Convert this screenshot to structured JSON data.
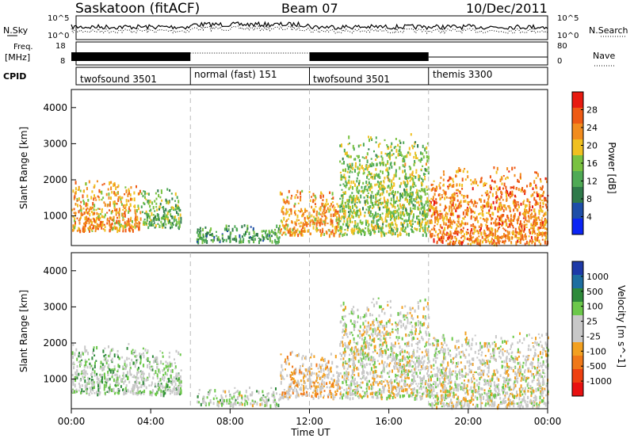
{
  "header": {
    "radar": "Saskatoon (fitACF)",
    "beam": "Beam 07",
    "date": "10/Dec/2011"
  },
  "side_labels": {
    "nsky": "N.Sky",
    "nsearch": "N.Search",
    "freq_line1": "Freq.",
    "freq_line2": "[MHz]",
    "nave": "Nave",
    "cpid": "CPID"
  },
  "left_ticks": {
    "nsky_top": "10^5",
    "nsky_bottom": "10^0",
    "freq_top": "18",
    "freq_bottom": "8"
  },
  "right_ticks": {
    "nsearch_top": "10^5",
    "nsearch_bottom": "10^0",
    "nave_top": "80",
    "nave_bottom": "0"
  },
  "cpid_labels": [
    "twofsound 3501",
    "normal (fast) 151",
    "twofsound 3501",
    "themis 3300"
  ],
  "x_axis": {
    "label": "Time UT",
    "ticks": [
      "00:00",
      "04:00",
      "08:00",
      "12:00",
      "16:00",
      "20:00",
      "00:00"
    ]
  },
  "power_panel": {
    "ylabel": "Slant Range [km]",
    "yticks": [
      "1000",
      "2000",
      "3000",
      "4000"
    ],
    "colorbar_label": "Power [dB]",
    "colorbar_ticks": [
      "4",
      "8",
      "12",
      "16",
      "20",
      "24",
      "28"
    ]
  },
  "velocity_panel": {
    "ylabel": "Slant Range [km]",
    "yticks": [
      "1000",
      "2000",
      "3000",
      "4000"
    ],
    "colorbar_label": "Velocity [m s^-1]",
    "colorbar_ticks": [
      "1000",
      "500",
      "100",
      "25",
      "-25",
      "-100",
      "-500",
      "-1000"
    ]
  },
  "colors": {
    "power_scale": [
      "#0b24f5",
      "#1e4ea8",
      "#2f7a4a",
      "#4faa55",
      "#79c241",
      "#f0c020",
      "#f28c1e",
      "#ee5a14",
      "#e81a10"
    ],
    "velocity_scale": [
      "#1e3aa8",
      "#1e6ea0",
      "#2e8a3a",
      "#6cc84a",
      "#c8c8c8",
      "#c8c8c8",
      "#f2a020",
      "#f07818",
      "#ee4010",
      "#e81010"
    ]
  },
  "chart_data": [
    {
      "type": "heatmap",
      "title": "Power",
      "xlabel": "Time UT",
      "ylabel": "Slant Range [km]",
      "xlim": [
        0,
        24
      ],
      "ylim": [
        180,
        4500
      ],
      "colorbar": {
        "label": "Power [dB]",
        "range": [
          0,
          32
        ]
      },
      "mode_boundaries_hours": [
        6,
        12,
        18
      ],
      "scatter_regions": [
        {
          "t_start": 0.0,
          "t_end": 3.5,
          "range_min": 600,
          "range_max": 2000,
          "typical_power_db": 22
        },
        {
          "t_start": 3.5,
          "t_end": 5.5,
          "range_min": 700,
          "range_max": 1800,
          "typical_power_db": 14
        },
        {
          "t_start": 6.3,
          "t_end": 10.5,
          "range_min": 300,
          "range_max": 800,
          "typical_power_db": 12
        },
        {
          "t_start": 10.5,
          "t_end": 13.5,
          "range_min": 500,
          "range_max": 1800,
          "typical_power_db": 22
        },
        {
          "t_start": 13.5,
          "t_end": 18.0,
          "range_min": 500,
          "range_max": 3300,
          "typical_power_db": 16
        },
        {
          "t_start": 18.0,
          "t_end": 24.0,
          "range_min": 250,
          "range_max": 2400,
          "typical_power_db": 24
        }
      ]
    },
    {
      "type": "heatmap",
      "title": "Velocity",
      "xlabel": "Time UT",
      "ylabel": "Slant Range [km]",
      "xlim": [
        0,
        24
      ],
      "ylim": [
        180,
        4500
      ],
      "colorbar": {
        "label": "Velocity [m s^-1]",
        "range": [
          -1000,
          1000
        ]
      },
      "mode_boundaries_hours": [
        6,
        12,
        18
      ],
      "scatter_regions": [
        {
          "t_start": 0.0,
          "t_end": 5.5,
          "range_min": 600,
          "range_max": 2000,
          "typical_velocity": 150
        },
        {
          "t_start": 6.3,
          "t_end": 10.5,
          "range_min": 300,
          "range_max": 800,
          "typical_velocity": 100
        },
        {
          "t_start": 10.5,
          "t_end": 13.5,
          "range_min": 500,
          "range_max": 1800,
          "typical_velocity": -150
        },
        {
          "t_start": 13.5,
          "t_end": 18.0,
          "range_min": 500,
          "range_max": 3300,
          "typical_velocity": 0
        },
        {
          "t_start": 18.0,
          "t_end": 24.0,
          "range_min": 250,
          "range_max": 2400,
          "typical_velocity": 0
        }
      ]
    }
  ]
}
